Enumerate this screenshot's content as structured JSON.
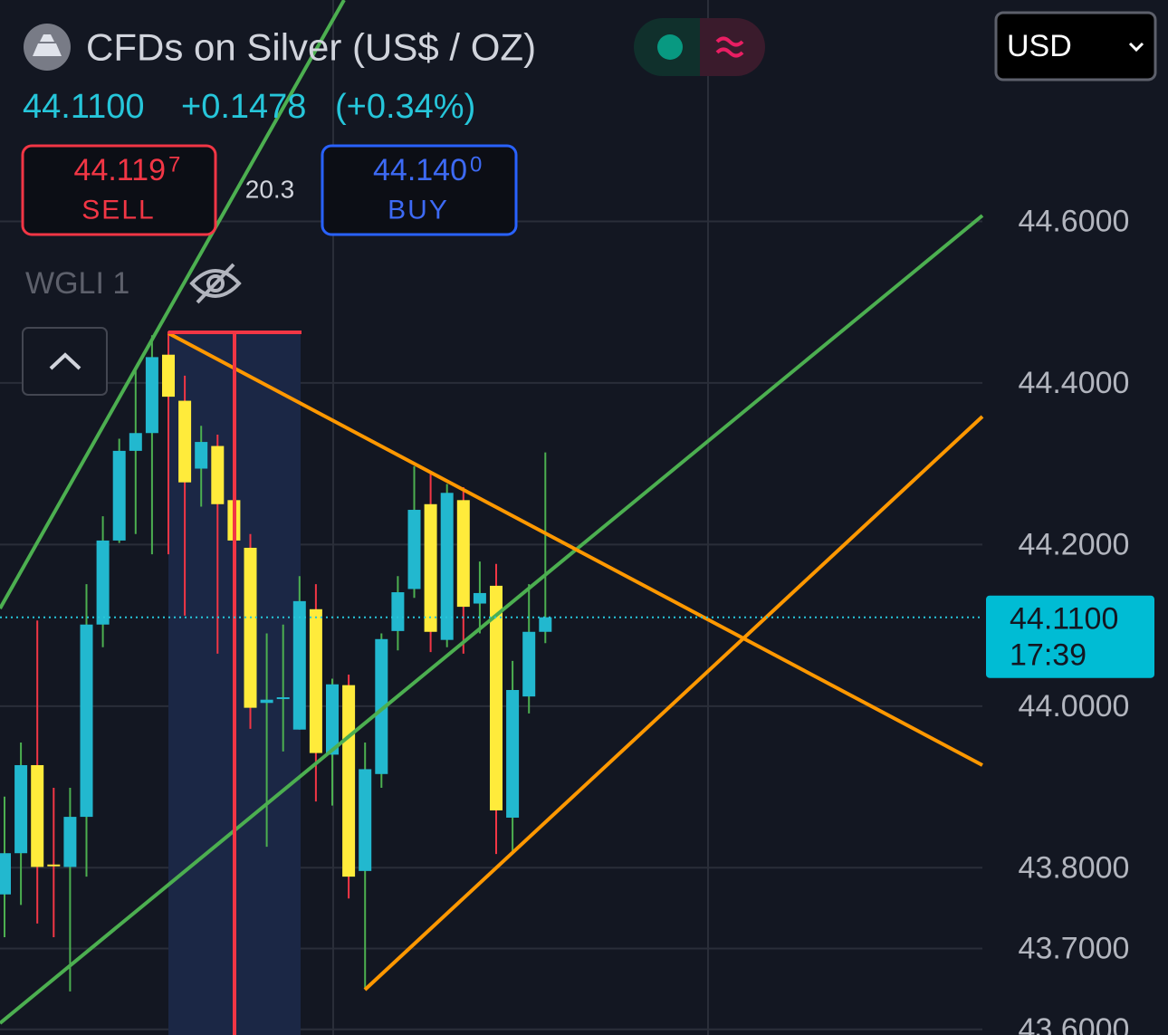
{
  "header": {
    "title": "CFDs on Silver (US$ / OZ)",
    "price": "44.1100",
    "change": "+0.1478",
    "change_pct": "(+0.34%)",
    "sell": {
      "price": "44.119",
      "pip": "7",
      "label": "SELL"
    },
    "spread": "20.3",
    "buy": {
      "price": "44.140",
      "pip": "0",
      "label": "BUY"
    },
    "indicator": "WGLI 1",
    "currency": "USD"
  },
  "chart_data": {
    "type": "candlestick",
    "categories": [
      null,
      null,
      null,
      null,
      null,
      null,
      null,
      null,
      null,
      null,
      null,
      null,
      null,
      null,
      null,
      null,
      null,
      null,
      null,
      null,
      null,
      null,
      null,
      null,
      null,
      null,
      null,
      null,
      null,
      null,
      null,
      null,
      null,
      null
    ],
    "open": [
      43.767,
      43.818,
      43.927,
      43.804,
      43.801,
      43.863,
      44.101,
      44.205,
      44.316,
      44.338,
      44.435,
      44.378,
      44.294,
      44.322,
      44.255,
      44.196,
      44.004,
      44.009,
      43.971,
      44.12,
      43.94,
      44.026,
      43.796,
      43.916,
      44.093,
      44.145,
      44.25,
      44.082,
      44.255,
      44.127,
      44.149,
      43.862,
      44.012,
      44.092
    ],
    "high": [
      43.888,
      43.955,
      44.106,
      43.899,
      43.899,
      44.151,
      44.235,
      44.331,
      44.415,
      44.459,
      44.464,
      44.409,
      44.347,
      44.336,
      44.269,
      44.213,
      44.09,
      44.101,
      44.161,
      44.151,
      44.034,
      44.039,
      43.955,
      44.09,
      44.161,
      44.297,
      44.291,
      44.275,
      44.271,
      44.179,
      44.176,
      44.056,
      44.151,
      44.314
    ],
    "low": [
      43.714,
      43.754,
      43.731,
      43.714,
      43.647,
      43.789,
      44.073,
      44.202,
      44.213,
      44.188,
      44.188,
      44.112,
      44.247,
      44.065,
      44.09,
      43.972,
      43.826,
      43.944,
      43.971,
      43.882,
      43.877,
      43.762,
      43.65,
      43.899,
      44.069,
      44.134,
      44.067,
      44.073,
      44.065,
      44.09,
      43.817,
      43.821,
      43.991,
      44.078
    ],
    "close": [
      43.818,
      43.927,
      43.801,
      43.802,
      43.863,
      44.101,
      44.205,
      44.316,
      44.338,
      44.432,
      44.383,
      44.277,
      44.327,
      44.25,
      44.205,
      43.998,
      44.008,
      44.011,
      44.13,
      43.942,
      44.027,
      43.789,
      43.922,
      44.083,
      44.141,
      44.243,
      44.092,
      44.264,
      44.123,
      44.14,
      43.871,
      44.02,
      44.092,
      44.11
    ],
    "up_color": "#22b8cf",
    "down_color": "#ffeb3b",
    "up_wick": "#4caf50",
    "down_wick": "#f23645",
    "ylim": [
      43.593,
      44.874
    ],
    "yticks": [
      {
        "value": 43.6,
        "label": "43.6000"
      },
      {
        "value": 43.7,
        "label": "43.7000"
      },
      {
        "value": 43.8,
        "label": "43.8000"
      },
      {
        "value": 44.0,
        "label": "44.0000"
      },
      {
        "value": 44.2,
        "label": "44.2000"
      },
      {
        "value": 44.4,
        "label": "44.4000"
      },
      {
        "value": 44.6,
        "label": "44.6000"
      }
    ],
    "grid": true,
    "last": {
      "value": 44.11,
      "label": "44.1100",
      "countdown": "17:39"
    }
  }
}
